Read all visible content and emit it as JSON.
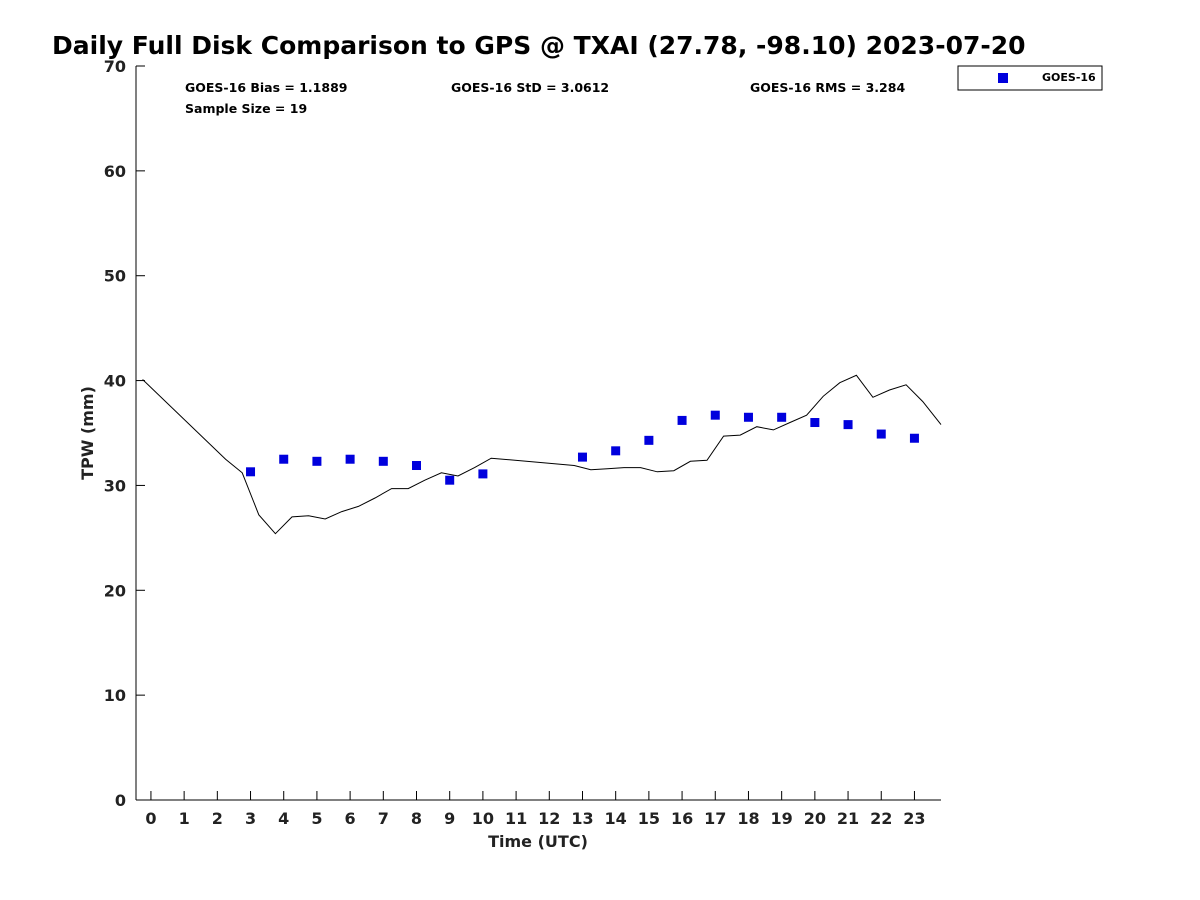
{
  "chart_data": {
    "type": "scatter",
    "title": "Daily Full Disk Comparison to GPS @ TXAI (27.78, -98.10) 2023-07-20",
    "xlabel": "Time (UTC)",
    "ylabel": "TPW (mm)",
    "xlim": [
      -0.45,
      23.8
    ],
    "ylim": [
      0,
      70
    ],
    "xticks": [
      0,
      1,
      2,
      3,
      4,
      5,
      6,
      7,
      8,
      9,
      10,
      11,
      12,
      13,
      14,
      15,
      16,
      17,
      18,
      19,
      20,
      21,
      22,
      23
    ],
    "yticks": [
      0,
      10,
      20,
      30,
      40,
      50,
      60,
      70
    ],
    "grid": false,
    "legend_position": "top-right",
    "stats": {
      "bias": "GOES-16 Bias = 1.1889",
      "std": "GOES-16 StD = 3.0612",
      "rms": "GOES-16 RMS = 3.284",
      "sample_size": "Sample Size = 19"
    },
    "series": [
      {
        "name": "GOES-16",
        "kind": "markers",
        "color": "#0000dd",
        "x": [
          3,
          4,
          5,
          6,
          7,
          8,
          9,
          10,
          13,
          14,
          15,
          16,
          17,
          18,
          19,
          20,
          21,
          22,
          23
        ],
        "y": [
          31.3,
          32.5,
          32.3,
          32.5,
          32.3,
          31.9,
          30.5,
          31.1,
          32.7,
          33.3,
          34.3,
          36.2,
          36.7,
          36.5,
          36.5,
          36.0,
          35.8,
          34.9,
          34.5
        ]
      },
      {
        "kind": "line",
        "color": "#000000",
        "x": [
          -0.25,
          2.25,
          2.75,
          3.25,
          3.75,
          4.25,
          4.75,
          5.25,
          5.75,
          6.25,
          6.75,
          7.25,
          7.75,
          8.25,
          8.75,
          9.25,
          9.75,
          10.25,
          12.75,
          13.25,
          13.75,
          14.25,
          14.75,
          15.25,
          15.75,
          16.25,
          16.75,
          17.25,
          17.75,
          18.25,
          18.75,
          19.25,
          19.75,
          20.25,
          20.75,
          21.25,
          21.75,
          22.25,
          22.75,
          23.25,
          23.8
        ],
        "y": [
          40.1,
          32.5,
          31.2,
          27.2,
          25.4,
          27.0,
          27.1,
          26.8,
          27.5,
          28.0,
          28.8,
          29.7,
          29.7,
          30.5,
          31.2,
          30.9,
          31.7,
          32.6,
          31.9,
          31.5,
          31.6,
          31.7,
          31.7,
          31.3,
          31.4,
          32.3,
          32.4,
          34.7,
          34.8,
          35.6,
          35.3,
          36.0,
          36.7,
          38.5,
          39.8,
          40.5,
          38.4,
          39.1,
          39.6,
          38.0,
          35.8
        ]
      }
    ]
  }
}
